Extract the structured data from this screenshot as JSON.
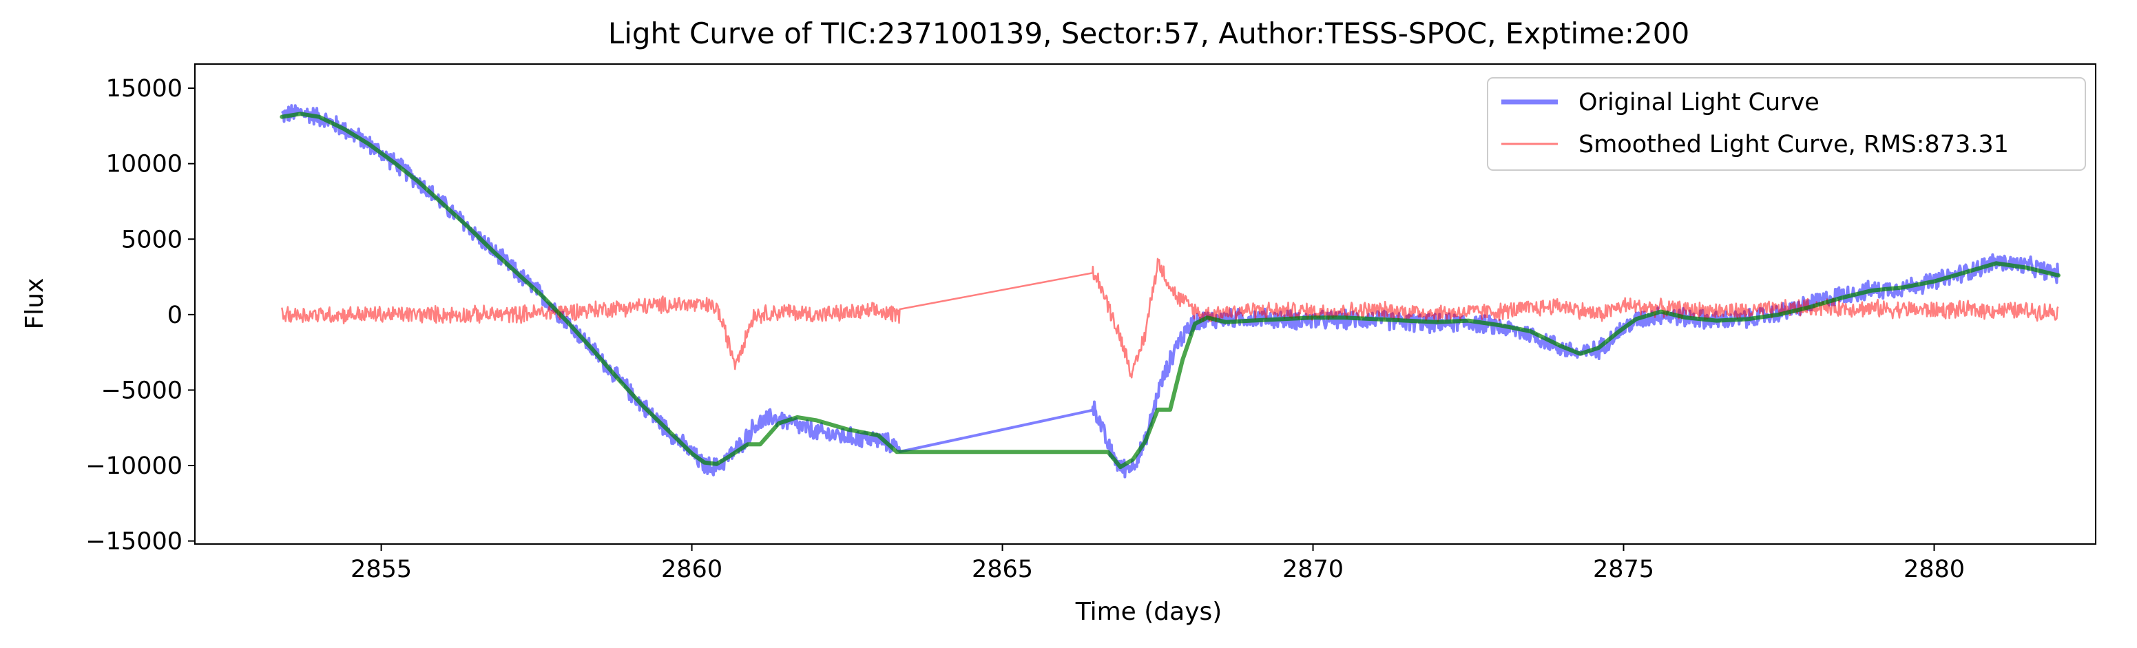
{
  "chart_data": {
    "type": "line",
    "title": "Light Curve of TIC:237100139, Sector:57, Author:TESS-SPOC, Exptime:200",
    "xlabel": "Time (days)",
    "ylabel": "Flux",
    "xlim": [
      2852.0,
      2882.6
    ],
    "ylim": [
      -15200,
      16600
    ],
    "xticks": [
      2855,
      2860,
      2865,
      2870,
      2875,
      2880
    ],
    "yticks": [
      -15000,
      -10000,
      -5000,
      0,
      5000,
      10000,
      15000
    ],
    "xtick_labels": [
      "2855",
      "2860",
      "2865",
      "2870",
      "2875",
      "2880"
    ],
    "ytick_labels": [
      "−15000",
      "−10000",
      "−5000",
      "0",
      "5000",
      "10000",
      "15000"
    ],
    "grid": false,
    "legend": {
      "placement": "top-right",
      "entries": [
        "Original Light Curve",
        "Smoothed Light Curve, RMS:873.31"
      ]
    },
    "colors": {
      "original": "#0000ff",
      "residual": "#ff0000",
      "smoothed": "#008000"
    },
    "series": [
      {
        "name": "Original Light Curve",
        "style": "thick-blue-alpha",
        "noise": 700,
        "x": [
          2853.4,
          2853.7,
          2854.0,
          2854.4,
          2854.8,
          2855.2,
          2855.6,
          2856.0,
          2856.4,
          2856.8,
          2857.2,
          2857.6,
          2858.0,
          2858.4,
          2858.8,
          2859.2,
          2859.6,
          2860.0,
          2860.2,
          2860.4,
          2860.6,
          2860.8,
          2861.0,
          2861.3,
          2861.6,
          2862.0,
          2862.5,
          2863.0,
          2863.3,
          2866.5,
          2866.7,
          2866.9,
          2867.1,
          2867.3,
          2867.5,
          2867.8,
          2868.1,
          2868.5,
          2869.0,
          2869.5,
          2870.0,
          2870.5,
          2871.0,
          2871.5,
          2872.0,
          2872.5,
          2873.0,
          2873.5,
          2874.0,
          2874.3,
          2874.6,
          2874.9,
          2875.2,
          2875.6,
          2876.0,
          2876.5,
          2877.0,
          2877.5,
          2878.0,
          2878.5,
          2879.0,
          2879.5,
          2880.0,
          2880.5,
          2881.0,
          2881.5,
          2882.0
        ],
        "y": [
          13200,
          13400,
          13100,
          12300,
          11300,
          10100,
          8800,
          7300,
          5800,
          4200,
          2700,
          1200,
          -500,
          -2300,
          -4200,
          -6000,
          -7600,
          -9200,
          -10000,
          -10100,
          -9400,
          -8600,
          -7400,
          -6800,
          -7200,
          -7800,
          -8100,
          -8300,
          -8700,
          -6300,
          -8700,
          -10200,
          -10000,
          -8500,
          -5200,
          -2000,
          -400,
          -300,
          -200,
          -300,
          -400,
          -350,
          -300,
          -500,
          -600,
          -500,
          -800,
          -1300,
          -2200,
          -2600,
          -2300,
          -1200,
          -400,
          0,
          -200,
          -400,
          -300,
          100,
          700,
          1300,
          1600,
          1800,
          2200,
          2800,
          3500,
          3200,
          2700
        ]
      },
      {
        "name": "Smoothed Light Curve, RMS:873.31",
        "style": "thin-red-alpha",
        "noise": 650,
        "x": [
          2853.4,
          2854.0,
          2855.0,
          2856.0,
          2857.0,
          2858.0,
          2859.0,
          2859.8,
          2860.4,
          2860.7,
          2861.0,
          2861.5,
          2862.0,
          2862.5,
          2863.0,
          2863.3,
          2866.5,
          2866.7,
          2866.9,
          2867.1,
          2867.3,
          2867.5,
          2867.8,
          2868.2,
          2869.0,
          2870.0,
          2871.0,
          2872.0,
          2873.0,
          2874.0,
          2874.6,
          2875.0,
          2876.0,
          2877.0,
          2878.0,
          2879.0,
          2880.0,
          2881.0,
          2882.0
        ],
        "y": [
          0,
          0,
          0,
          0,
          0,
          200,
          500,
          700,
          500,
          -3200,
          0,
          200,
          0,
          100,
          200,
          0,
          2800,
          600,
          -1500,
          -4000,
          -1200,
          3500,
          1200,
          0,
          300,
          200,
          300,
          100,
          200,
          600,
          0,
          600,
          300,
          200,
          500,
          400,
          300,
          300,
          200
        ]
      }
    ],
    "trend": {
      "style": "green-overlay",
      "x": [
        2853.4,
        2853.7,
        2854.0,
        2854.4,
        2854.8,
        2855.2,
        2855.6,
        2856.0,
        2856.4,
        2856.8,
        2857.2,
        2857.6,
        2858.0,
        2858.4,
        2858.8,
        2859.2,
        2859.6,
        2860.0,
        2860.2,
        2860.4,
        2860.6,
        2860.9,
        2861.1,
        2861.4,
        2861.7,
        2862.0,
        2862.5,
        2863.0,
        2863.3,
        2866.5,
        2866.7,
        2866.9,
        2867.1,
        2867.3,
        2867.5,
        2867.7,
        2867.9,
        2868.1,
        2868.3,
        2868.6,
        2869.0,
        2869.5,
        2870.0,
        2870.5,
        2871.0,
        2871.5,
        2872.0,
        2872.5,
        2873.0,
        2873.5,
        2874.0,
        2874.3,
        2874.6,
        2874.9,
        2875.2,
        2875.6,
        2876.0,
        2876.5,
        2877.0,
        2877.5,
        2878.0,
        2878.5,
        2879.0,
        2879.5,
        2880.0,
        2880.5,
        2881.0,
        2881.5,
        2882.0
      ],
      "y": [
        13100,
        13300,
        13100,
        12300,
        11300,
        10100,
        8800,
        7300,
        5800,
        4200,
        2700,
        1200,
        -500,
        -2300,
        -4200,
        -6000,
        -7600,
        -9200,
        -9800,
        -9900,
        -9400,
        -8600,
        -8600,
        -7200,
        -6800,
        -7000,
        -7600,
        -8000,
        -9100,
        -9100,
        -9100,
        -10100,
        -9600,
        -8400,
        -6300,
        -6300,
        -3000,
        -600,
        -200,
        -500,
        -400,
        -300,
        -200,
        -200,
        -300,
        -400,
        -500,
        -400,
        -700,
        -1100,
        -2100,
        -2600,
        -2200,
        -1200,
        -300,
        200,
        -200,
        -400,
        -300,
        0,
        500,
        1100,
        1600,
        1800,
        2200,
        2800,
        3400,
        3100,
        2600
      ]
    }
  }
}
